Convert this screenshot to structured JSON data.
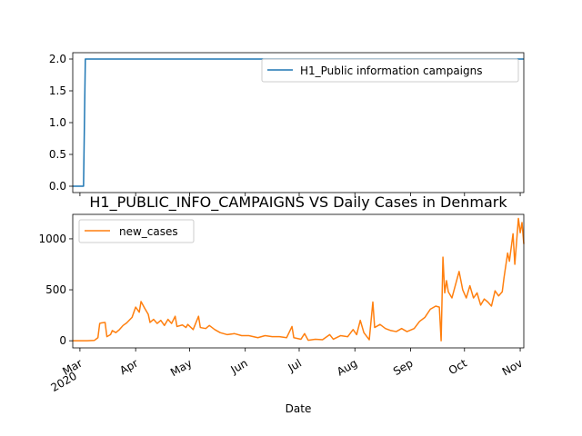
{
  "chart_data": [
    {
      "type": "line",
      "title": "",
      "xlabel": "",
      "ylabel": "",
      "xlim": [
        "2020-02-26",
        "2020-11-03"
      ],
      "ylim": [
        -0.1,
        2.1
      ],
      "yticks": [
        "0.0",
        "0.5",
        "1.0",
        "1.5",
        "2.0"
      ],
      "legend_position": "upper right",
      "series": [
        {
          "name": "H1_Public information campaigns",
          "color": "#1f77b4",
          "points": [
            [
              "2020-02-26",
              0
            ],
            [
              "2020-03-03",
              0
            ],
            [
              "2020-03-04",
              2
            ],
            [
              "2020-11-03",
              2
            ]
          ]
        }
      ]
    },
    {
      "type": "line",
      "title": "H1_PUBLIC_INFO_CAMPAIGNS VS Daily Cases in Denmark",
      "xlabel": "Date",
      "ylabel": "",
      "xlim": [
        "2020-02-26",
        "2020-11-03"
      ],
      "ylim": [
        -70,
        1240
      ],
      "yticks": [
        "0",
        "500",
        "1000"
      ],
      "x_tick_labels": [
        {
          "date": "2020-03-01",
          "label": "Mar",
          "sublabel": "2020"
        },
        {
          "date": "2020-04-01",
          "label": "Apr"
        },
        {
          "date": "2020-05-01",
          "label": "May"
        },
        {
          "date": "2020-06-01",
          "label": "Jun"
        },
        {
          "date": "2020-07-01",
          "label": "Jul"
        },
        {
          "date": "2020-08-01",
          "label": "Aug"
        },
        {
          "date": "2020-09-01",
          "label": "Sep"
        },
        {
          "date": "2020-10-01",
          "label": "Oct"
        },
        {
          "date": "2020-11-01",
          "label": "Nov"
        }
      ],
      "legend_position": "upper left",
      "series": [
        {
          "name": "new_cases",
          "color": "#ff7f0e",
          "points": [
            [
              "2020-02-26",
              0
            ],
            [
              "2020-03-05",
              0
            ],
            [
              "2020-03-09",
              3
            ],
            [
              "2020-03-11",
              30
            ],
            [
              "2020-03-12",
              170
            ],
            [
              "2020-03-13",
              175
            ],
            [
              "2020-03-15",
              180
            ],
            [
              "2020-03-16",
              40
            ],
            [
              "2020-03-18",
              60
            ],
            [
              "2020-03-19",
              100
            ],
            [
              "2020-03-21",
              80
            ],
            [
              "2020-03-23",
              110
            ],
            [
              "2020-03-25",
              150
            ],
            [
              "2020-03-27",
              175
            ],
            [
              "2020-03-30",
              230
            ],
            [
              "2020-04-01",
              330
            ],
            [
              "2020-04-03",
              280
            ],
            [
              "2020-04-04",
              385
            ],
            [
              "2020-04-06",
              320
            ],
            [
              "2020-04-08",
              260
            ],
            [
              "2020-04-09",
              180
            ],
            [
              "2020-04-11",
              210
            ],
            [
              "2020-04-13",
              170
            ],
            [
              "2020-04-15",
              200
            ],
            [
              "2020-04-17",
              150
            ],
            [
              "2020-04-19",
              210
            ],
            [
              "2020-04-21",
              170
            ],
            [
              "2020-04-23",
              240
            ],
            [
              "2020-04-24",
              140
            ],
            [
              "2020-04-27",
              155
            ],
            [
              "2020-04-29",
              130
            ],
            [
              "2020-04-30",
              160
            ],
            [
              "2020-05-03",
              110
            ],
            [
              "2020-05-06",
              240
            ],
            [
              "2020-05-07",
              130
            ],
            [
              "2020-05-10",
              120
            ],
            [
              "2020-05-12",
              150
            ],
            [
              "2020-05-15",
              110
            ],
            [
              "2020-05-18",
              80
            ],
            [
              "2020-05-22",
              60
            ],
            [
              "2020-05-26",
              70
            ],
            [
              "2020-05-30",
              50
            ],
            [
              "2020-06-03",
              50
            ],
            [
              "2020-06-08",
              30
            ],
            [
              "2020-06-12",
              50
            ],
            [
              "2020-06-16",
              40
            ],
            [
              "2020-06-20",
              40
            ],
            [
              "2020-06-24",
              30
            ],
            [
              "2020-06-27",
              140
            ],
            [
              "2020-06-28",
              30
            ],
            [
              "2020-07-02",
              15
            ],
            [
              "2020-07-04",
              70
            ],
            [
              "2020-07-06",
              5
            ],
            [
              "2020-07-10",
              15
            ],
            [
              "2020-07-14",
              10
            ],
            [
              "2020-07-18",
              60
            ],
            [
              "2020-07-20",
              15
            ],
            [
              "2020-07-24",
              50
            ],
            [
              "2020-07-28",
              40
            ],
            [
              "2020-07-31",
              110
            ],
            [
              "2020-08-02",
              60
            ],
            [
              "2020-08-04",
              200
            ],
            [
              "2020-08-06",
              80
            ],
            [
              "2020-08-09",
              10
            ],
            [
              "2020-08-11",
              380
            ],
            [
              "2020-08-12",
              130
            ],
            [
              "2020-08-15",
              160
            ],
            [
              "2020-08-18",
              120
            ],
            [
              "2020-08-21",
              100
            ],
            [
              "2020-08-24",
              90
            ],
            [
              "2020-08-27",
              120
            ],
            [
              "2020-08-30",
              90
            ],
            [
              "2020-09-03",
              120
            ],
            [
              "2020-09-06",
              190
            ],
            [
              "2020-09-09",
              230
            ],
            [
              "2020-09-12",
              310
            ],
            [
              "2020-09-15",
              340
            ],
            [
              "2020-09-17",
              330
            ],
            [
              "2020-09-18",
              0
            ],
            [
              "2020-09-19",
              820
            ],
            [
              "2020-09-20",
              470
            ],
            [
              "2020-09-21",
              590
            ],
            [
              "2020-09-22",
              480
            ],
            [
              "2020-09-24",
              420
            ],
            [
              "2020-09-26",
              550
            ],
            [
              "2020-09-28",
              680
            ],
            [
              "2020-09-30",
              500
            ],
            [
              "2020-10-02",
              420
            ],
            [
              "2020-10-04",
              540
            ],
            [
              "2020-10-06",
              420
            ],
            [
              "2020-10-08",
              470
            ],
            [
              "2020-10-10",
              350
            ],
            [
              "2020-10-12",
              410
            ],
            [
              "2020-10-14",
              380
            ],
            [
              "2020-10-16",
              340
            ],
            [
              "2020-10-18",
              490
            ],
            [
              "2020-10-20",
              440
            ],
            [
              "2020-10-22",
              480
            ],
            [
              "2020-10-23",
              620
            ],
            [
              "2020-10-25",
              860
            ],
            [
              "2020-10-26",
              780
            ],
            [
              "2020-10-28",
              1050
            ],
            [
              "2020-10-29",
              750
            ],
            [
              "2020-10-31",
              1200
            ],
            [
              "2020-11-01",
              1060
            ],
            [
              "2020-11-02",
              1160
            ],
            [
              "2020-11-03",
              950
            ]
          ]
        }
      ]
    }
  ]
}
